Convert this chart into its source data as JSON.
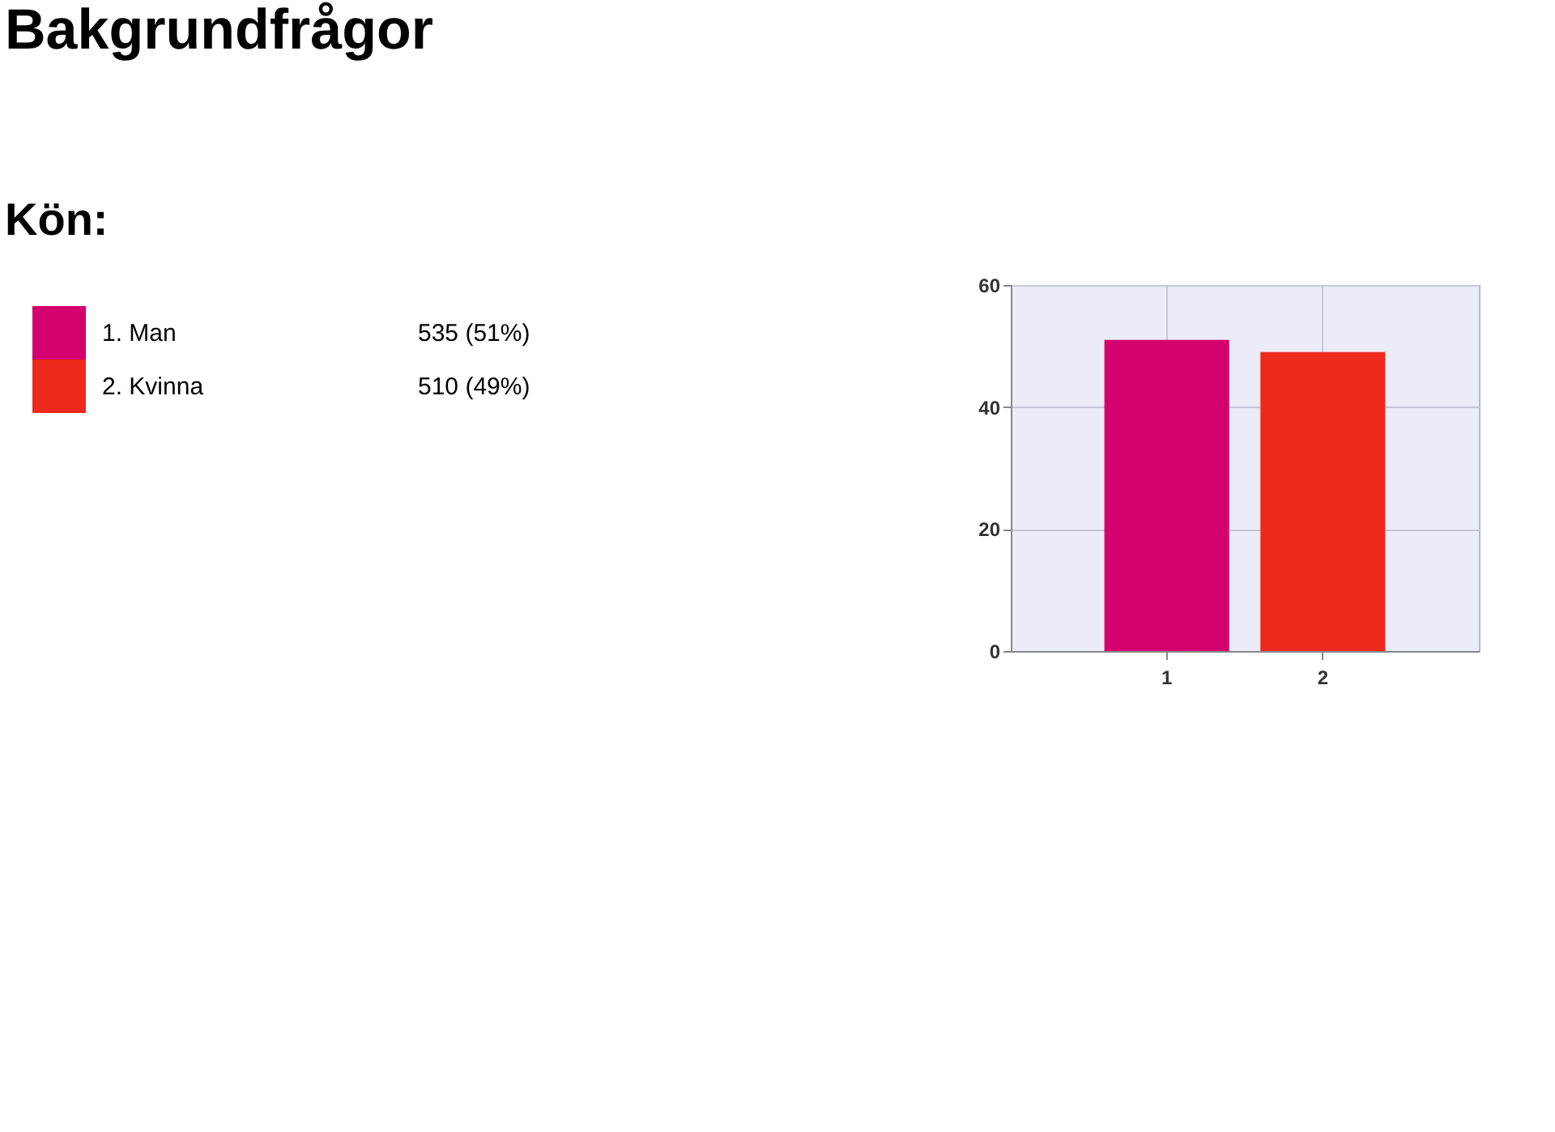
{
  "chart_data": {
    "type": "bar",
    "title": "Bakgrundfrågor",
    "subtitle": "Kön:",
    "categories": [
      "1",
      "2"
    ],
    "series": [
      {
        "name": "1. Man",
        "color": "#d4006e",
        "values": [
          51,
          null
        ]
      },
      {
        "name": "2. Kvinna",
        "color": "#ee2a1d",
        "values": [
          null,
          49
        ]
      }
    ],
    "annotations": [
      "535 (51%)",
      "510 (49%)"
    ],
    "ylim": [
      0,
      60
    ],
    "yticks": [
      0,
      20,
      40,
      60
    ],
    "grid": true,
    "legend": "left"
  }
}
